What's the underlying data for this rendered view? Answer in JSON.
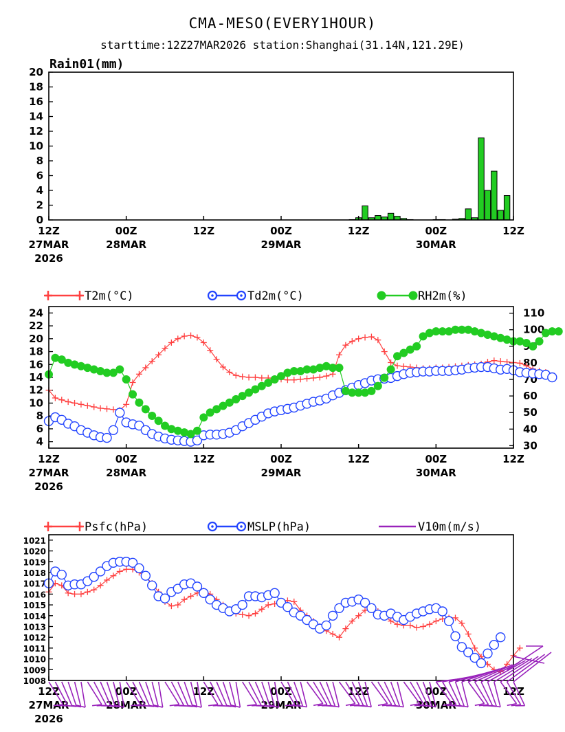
{
  "title": "CMA-MESO(EVERY1HOUR)",
  "subtitle": "starttime:12Z27MAR2026   station:Shanghai(31.14N,121.29E)",
  "time_axis": {
    "hours_span": 72,
    "ticks": [
      {
        "h": 0,
        "l1": "12Z",
        "l2": "27MAR",
        "l3": "2026"
      },
      {
        "h": 12,
        "l1": "00Z",
        "l2": "28MAR",
        "l3": ""
      },
      {
        "h": 24,
        "l1": "12Z",
        "l2": "",
        "l3": ""
      },
      {
        "h": 36,
        "l1": "00Z",
        "l2": "29MAR",
        "l3": ""
      },
      {
        "h": 48,
        "l1": "12Z",
        "l2": "",
        "l3": ""
      },
      {
        "h": 60,
        "l1": "00Z",
        "l2": "30MAR",
        "l3": ""
      },
      {
        "h": 72,
        "l1": "12Z",
        "l2": "",
        "l3": ""
      }
    ]
  },
  "chart_data": [
    {
      "type": "bar",
      "panel": "rain",
      "ylabel": "Rain01(mm)",
      "ylim": [
        0,
        20
      ],
      "yticks": [
        0,
        2,
        4,
        6,
        8,
        10,
        12,
        14,
        16,
        18,
        20
      ],
      "bar_color": "#22cc22",
      "x_hours": [
        47,
        48,
        49,
        50,
        51,
        52,
        53,
        54,
        55,
        56,
        57,
        58,
        59,
        60,
        61,
        62,
        63,
        64,
        65,
        66,
        67,
        68,
        69,
        70,
        71,
        72
      ],
      "values": [
        0.05,
        0.3,
        1.9,
        0.3,
        0.6,
        0.4,
        0.9,
        0.5,
        0.2,
        0.05,
        0,
        0,
        0,
        0.05,
        0.05,
        0,
        0.1,
        0.2,
        1.5,
        0.3,
        11.1,
        4.0,
        6.6,
        1.3,
        3.3,
        0
      ]
    },
    {
      "type": "line",
      "panel": "temperature",
      "ylim_left": [
        3,
        25
      ],
      "yticks_left": [
        4,
        6,
        8,
        10,
        12,
        14,
        16,
        18,
        20,
        22,
        24
      ],
      "ylim_right": [
        28.5,
        114
      ],
      "yticks_right": [
        30,
        40,
        50,
        60,
        70,
        80,
        90,
        100,
        110
      ],
      "series": [
        {
          "name": "T2m(°C)",
          "color": "#ff4040",
          "marker": "plus",
          "axis": "left",
          "values": [
            12,
            10.8,
            10.5,
            10.2,
            10,
            9.8,
            9.6,
            9.4,
            9.2,
            9.1,
            9,
            8.9,
            9.8,
            13.2,
            14.5,
            15.5,
            16.5,
            17.5,
            18.5,
            19.4,
            20,
            20.4,
            20.5,
            20.2,
            19.4,
            18.2,
            16.8,
            15.6,
            14.8,
            14.3,
            14.1,
            14,
            14,
            13.9,
            13.9,
            13.8,
            13.7,
            13.6,
            13.6,
            13.7,
            13.8,
            13.9,
            14,
            14.2,
            14.5,
            17.5,
            19,
            19.6,
            20,
            20.2,
            20.3,
            19.8,
            18,
            16.3,
            15.8,
            15.7,
            15.6,
            15.5,
            15.4,
            15.4,
            15.5,
            15.5,
            15.6,
            15.7,
            15.8,
            15.9,
            16,
            16.1,
            16.4,
            16.6,
            16.5,
            16.4,
            16.3,
            16.2,
            15.8,
            15.3,
            15,
            14.8
          ]
        },
        {
          "name": "Td2m(°C)",
          "color": "#2244ff",
          "marker": "circle",
          "axis": "left",
          "values": [
            7.2,
            7.8,
            7.4,
            6.8,
            6.4,
            5.8,
            5.4,
            5,
            4.7,
            4.6,
            5.8,
            8.5,
            7,
            6.7,
            6.5,
            5.8,
            5.2,
            4.8,
            4.5,
            4.3,
            4.2,
            4.1,
            4,
            4.2,
            5,
            5.1,
            5.1,
            5.2,
            5.4,
            5.8,
            6.4,
            6.9,
            7.4,
            7.9,
            8.4,
            8.7,
            8.9,
            9.1,
            9.3,
            9.6,
            9.9,
            10.2,
            10.4,
            10.7,
            11.2,
            11.6,
            12,
            12.4,
            12.8,
            13.1,
            13.5,
            13.7,
            13.8,
            13.9,
            14.2,
            14.5,
            14.7,
            14.8,
            14.9,
            14.9,
            15,
            15,
            15,
            15.1,
            15.2,
            15.4,
            15.5,
            15.6,
            15.6,
            15.4,
            15.2,
            15.3,
            15.1,
            14.8,
            14.7,
            14.6,
            14.5,
            14.4,
            14
          ]
        },
        {
          "name": "RH2m(%)",
          "color": "#22cc22",
          "marker": "dot",
          "axis": "right",
          "values": [
            73,
            83,
            82,
            80,
            79,
            78,
            77,
            76,
            75,
            74,
            74,
            76,
            70,
            61,
            56,
            52,
            48,
            45,
            42,
            40,
            39,
            38,
            37,
            39,
            47,
            50,
            52,
            54,
            56,
            58,
            60,
            62,
            64,
            66,
            68,
            70,
            72,
            74,
            75,
            75,
            76,
            76,
            77,
            78,
            77,
            77,
            63,
            62,
            62,
            62,
            63,
            66,
            71,
            76,
            84,
            86,
            88,
            90,
            96,
            98,
            99,
            99,
            99,
            100,
            100,
            100,
            99,
            98,
            97,
            96,
            95,
            94,
            93,
            93,
            92,
            90,
            93,
            98,
            99,
            99
          ]
        }
      ]
    },
    {
      "type": "line",
      "panel": "pressure",
      "ylim": [
        1008,
        1021.5
      ],
      "yticks": [
        1008,
        1009,
        1010,
        1011,
        1012,
        1013,
        1014,
        1015,
        1016,
        1017,
        1018,
        1019,
        1020,
        1021
      ],
      "series": [
        {
          "name": "Psfc(hPa)",
          "color": "#ff4040",
          "marker": "plus",
          "values": [
            1016.2,
            1017,
            1016.8,
            1016.1,
            1016,
            1016,
            1016.2,
            1016.4,
            1016.8,
            1017.3,
            1017.7,
            1018.1,
            1018.3,
            1018.3,
            1018,
            1017.6,
            1017,
            1016.2,
            1015.3,
            1014.9,
            1015,
            1015.5,
            1015.8,
            1016.1,
            1016.3,
            1016,
            1015.5,
            1015,
            1014.5,
            1014.2,
            1014.1,
            1014,
            1014.2,
            1014.6,
            1015,
            1015.1,
            1015.2,
            1015.4,
            1015.3,
            1014.5,
            1014,
            1013.5,
            1013,
            1012.6,
            1012.3,
            1012,
            1012.8,
            1013.5,
            1014,
            1014.5,
            1014.6,
            1014.4,
            1014,
            1013.5,
            1013.2,
            1013.1,
            1013.1,
            1012.9,
            1013,
            1013.2,
            1013.5,
            1013.7,
            1013.8,
            1013.8,
            1013.3,
            1012.3,
            1011,
            1010.2,
            1009.5,
            1009,
            1008.8,
            1009.5,
            1010.3,
            1011
          ]
        },
        {
          "name": "MSLP(hPa)",
          "color": "#2244ff",
          "marker": "circle",
          "values": [
            1017,
            1018.1,
            1017.8,
            1016.8,
            1016.9,
            1016.9,
            1017.2,
            1017.6,
            1018.1,
            1018.6,
            1018.9,
            1019,
            1019,
            1018.9,
            1018.4,
            1017.7,
            1016.8,
            1015.8,
            1015.6,
            1016.2,
            1016.5,
            1016.9,
            1017,
            1016.7,
            1016.1,
            1015.5,
            1015,
            1014.7,
            1014.4,
            1014.6,
            1015,
            1015.8,
            1015.8,
            1015.7,
            1015.9,
            1016.1,
            1015.2,
            1014.8,
            1014.3,
            1014,
            1013.6,
            1013.2,
            1012.8,
            1013.1,
            1014,
            1014.7,
            1015.2,
            1015.3,
            1015.5,
            1015.2,
            1014.7,
            1014.1,
            1014,
            1014.2,
            1013.9,
            1013.6,
            1013.9,
            1014.2,
            1014.4,
            1014.6,
            1014.7,
            1014.4,
            1013.5,
            1012.1,
            1011.1,
            1010.6,
            1010.1,
            1009.6,
            1010.5,
            1011.3,
            1012
          ]
        },
        {
          "name": "V10m(m/s)",
          "color": "#9922bb",
          "marker": "barb",
          "values": []
        }
      ]
    }
  ]
}
